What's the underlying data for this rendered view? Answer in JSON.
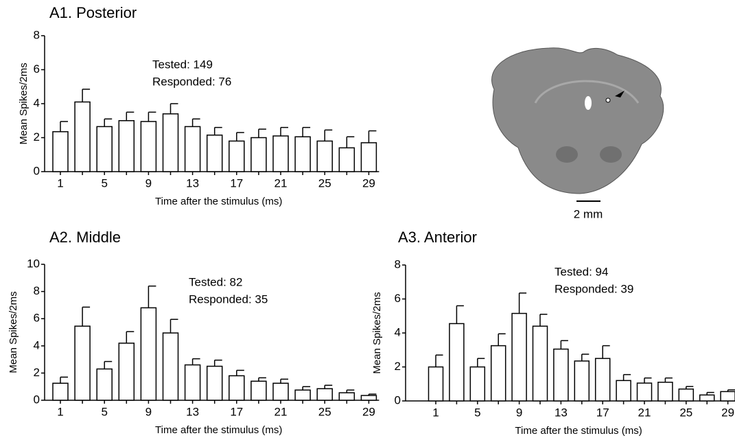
{
  "chart_data": [
    {
      "type": "bar",
      "title": "A1. Posterior",
      "xlabel": "Time after the stimulus (ms)",
      "ylabel": "Mean Spikes/2ms",
      "annotations": [
        "Tested: 149",
        "Responded: 76"
      ],
      "categories": [
        "1",
        null,
        "5",
        null,
        "9",
        null,
        "13",
        null,
        "17",
        null,
        "21",
        null,
        "25",
        null,
        "29"
      ],
      "values": [
        2.35,
        4.1,
        2.65,
        3.0,
        2.95,
        3.4,
        2.65,
        2.15,
        1.8,
        2.0,
        2.1,
        2.05,
        1.8,
        1.4,
        1.7
      ],
      "errors": [
        0.6,
        0.75,
        0.45,
        0.5,
        0.55,
        0.6,
        0.45,
        0.45,
        0.5,
        0.5,
        0.5,
        0.55,
        0.65,
        0.65,
        0.7
      ],
      "color": "#ffffff",
      "ylim": [
        0,
        8
      ],
      "yticks": [
        0,
        2,
        4,
        6,
        8
      ]
    },
    {
      "type": "bar",
      "title": "A2. Middle",
      "xlabel": "Time after the stimulus (ms)",
      "ylabel": "Mean Spikes/2ms",
      "annotations": [
        "Tested: 82",
        "Responded: 35"
      ],
      "categories": [
        "1",
        null,
        "5",
        null,
        "9",
        null,
        "13",
        null,
        "17",
        null,
        "21",
        null,
        "25",
        null,
        "29"
      ],
      "values": [
        1.25,
        5.45,
        2.3,
        4.2,
        6.8,
        4.95,
        2.6,
        2.5,
        1.8,
        1.4,
        1.25,
        0.75,
        0.85,
        0.55,
        0.35
      ],
      "errors": [
        0.45,
        1.4,
        0.55,
        0.85,
        1.6,
        1.0,
        0.45,
        0.45,
        0.4,
        0.25,
        0.3,
        0.25,
        0.25,
        0.2,
        0.1
      ],
      "color": "#ffffff",
      "ylim": [
        0,
        10
      ],
      "yticks": [
        0,
        2,
        4,
        6,
        8,
        10
      ]
    },
    {
      "type": "bar",
      "title": "A3. Anterior",
      "xlabel": "Time after the stimulus (ms)",
      "ylabel": "Mean Spikes/2ms",
      "annotations": [
        "Tested: 94",
        "Responded: 39"
      ],
      "categories": [
        "1",
        null,
        "5",
        null,
        "9",
        null,
        "13",
        null,
        "17",
        null,
        "21",
        null,
        "25",
        null,
        "29"
      ],
      "values": [
        2.0,
        4.55,
        2.0,
        3.25,
        5.15,
        4.4,
        3.05,
        2.35,
        2.5,
        1.2,
        1.05,
        1.1,
        0.7,
        0.35,
        0.55
      ],
      "errors": [
        0.7,
        1.05,
        0.5,
        0.7,
        1.2,
        0.7,
        0.5,
        0.4,
        0.75,
        0.35,
        0.3,
        0.25,
        0.15,
        0.15,
        0.1
      ],
      "color": "#ffffff",
      "ylim": [
        0,
        8
      ],
      "yticks": [
        0,
        2,
        4,
        6,
        8
      ]
    }
  ],
  "image": {
    "scale_bar_label": "2 mm"
  }
}
